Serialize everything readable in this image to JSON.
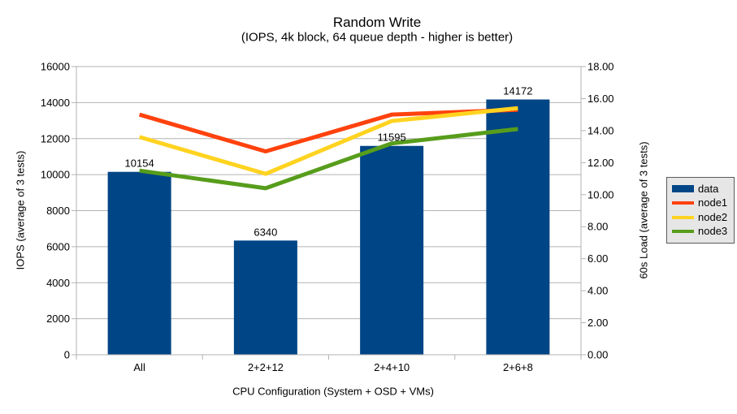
{
  "title": "Random Write",
  "subtitle": "(IOPS, 4k block, 64 queue depth - higher is better)",
  "chart_data": {
    "type": "bar+line",
    "categories": [
      "All",
      "2+2+12",
      "2+4+10",
      "2+6+8"
    ],
    "bar_series": {
      "name": "data",
      "axis": "left",
      "color": "#004586",
      "values": [
        10154,
        6340,
        11595,
        14172
      ],
      "data_labels": [
        "10154",
        "6340",
        "11595",
        "14172"
      ]
    },
    "line_series": [
      {
        "name": "node1",
        "axis": "right",
        "color": "#ff420e",
        "values": [
          15.0,
          12.7,
          15.0,
          15.3
        ]
      },
      {
        "name": "node2",
        "axis": "right",
        "color": "#ffd320",
        "values": [
          13.6,
          11.3,
          14.6,
          15.4
        ]
      },
      {
        "name": "node3",
        "axis": "right",
        "color": "#579d1c",
        "values": [
          11.5,
          10.4,
          13.2,
          14.1
        ]
      }
    ],
    "left_axis": {
      "title": "IOPS (average of 3 tests)",
      "min": 0,
      "max": 16000,
      "step": 2000,
      "tick_labels": [
        "0",
        "2000",
        "4000",
        "6000",
        "8000",
        "10000",
        "12000",
        "14000",
        "16000"
      ]
    },
    "right_axis": {
      "title": "60s Load (average of 3 tests)",
      "min": 0,
      "max": 18,
      "step": 2,
      "tick_labels": [
        "0.00",
        "2.00",
        "4.00",
        "6.00",
        "8.00",
        "10.00",
        "12.00",
        "14.00",
        "16.00",
        "18.00"
      ]
    },
    "x_axis": {
      "title": "CPU Configuration (System + OSD + VMs)"
    },
    "legend": {
      "position": "right",
      "entries": [
        {
          "label": "data",
          "swatch": "rect",
          "color": "#004586"
        },
        {
          "label": "node1",
          "swatch": "line",
          "color": "#ff420e"
        },
        {
          "label": "node2",
          "swatch": "line",
          "color": "#ffd320"
        },
        {
          "label": "node3",
          "swatch": "line",
          "color": "#579d1c"
        }
      ],
      "background": "#e6e6e6",
      "border_color": "#595959"
    },
    "grid": {
      "horizontal": true,
      "color": "#b3b3b3"
    },
    "background": "#ffffff"
  }
}
